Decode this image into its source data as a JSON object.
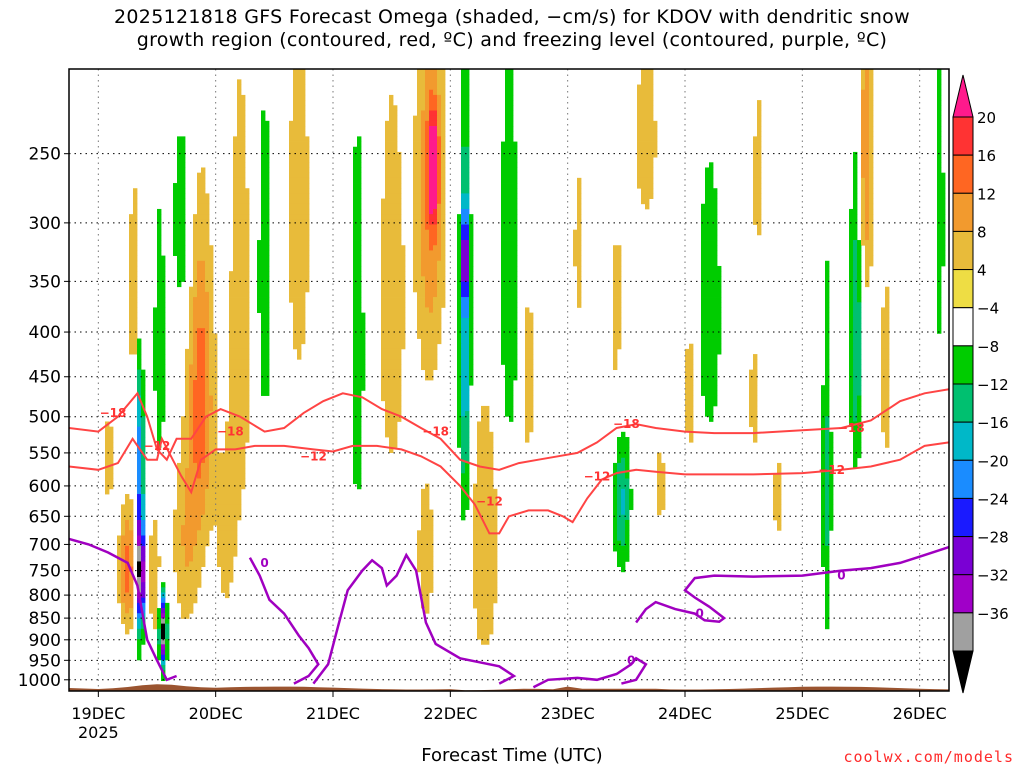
{
  "chart_data": {
    "type": "heatmap",
    "title_line1": "2025121818 GFS Forecast Omega (shaded, −cm/s) for KDOV with dendritic snow",
    "title_line2": "growth region (contoured, red, ºC) and freezing level (contoured, purple, ºC)",
    "xlabel": "Forecast Time (UTC)",
    "credit": "coolwx.com/models",
    "x_ticks": [
      "19DEC",
      "20DEC",
      "21DEC",
      "22DEC",
      "23DEC",
      "24DEC",
      "25DEC",
      "26DEC"
    ],
    "x_year": "2025",
    "x_tick_hours": [
      6,
      30,
      54,
      78,
      102,
      126,
      150,
      174
    ],
    "x_range_hours": [
      0,
      180
    ],
    "y_ticks": [
      250,
      300,
      350,
      400,
      450,
      500,
      550,
      600,
      650,
      700,
      750,
      800,
      850,
      900,
      950,
      1000
    ],
    "y_range_hPa": [
      200,
      1030
    ],
    "y_scale": "log-pressure",
    "grid": "dotted",
    "colorbar": {
      "labels": [
        "20",
        "16",
        "12",
        "8",
        "4",
        "−4",
        "−8",
        "−12",
        "−16",
        "−20",
        "−24",
        "−28",
        "−32",
        "−36"
      ],
      "colors": [
        "#ff1a8c",
        "#ff3333",
        "#ff6622",
        "#f29a2e",
        "#e8bb3a",
        "#eedd44",
        "#ffffff",
        "#00cc00",
        "#00c070",
        "#00b8c8",
        "#1a8cff",
        "#1a1aff",
        "#7a00d4",
        "#a000c8",
        "#a0a0a0",
        "#000000"
      ]
    },
    "omega_blobs": [
      {
        "x": 14,
        "p": 360,
        "dx": 1.8,
        "dp": 110,
        "v": 10
      },
      {
        "x": 8,
        "p": 560,
        "dx": 1.5,
        "dp": 90,
        "v": 6
      },
      {
        "x": 12,
        "p": 750,
        "dx": 1.8,
        "dp": 120,
        "v": 14
      },
      {
        "x": 14.5,
        "p": 600,
        "dx": 0.8,
        "dp": 280,
        "v": -20
      },
      {
        "x": 14.7,
        "p": 760,
        "dx": 0.6,
        "dp": 90,
        "v": -38
      },
      {
        "x": 17.5,
        "p": 760,
        "dx": 1.2,
        "dp": 140,
        "v": 8
      },
      {
        "x": 19.2,
        "p": 880,
        "dx": 0.7,
        "dp": 80,
        "v": -38
      },
      {
        "x": 18.5,
        "p": 420,
        "dx": 1.2,
        "dp": 160,
        "v": -8
      },
      {
        "x": 27,
        "p": 470,
        "dx": 2.6,
        "dp": 190,
        "v": 14
      },
      {
        "x": 24,
        "p": 700,
        "dx": 3.0,
        "dp": 180,
        "v": 8
      },
      {
        "x": 23,
        "p": 300,
        "dx": 1.8,
        "dp": 80,
        "v": -8
      },
      {
        "x": 35,
        "p": 400,
        "dx": 2.5,
        "dp": 260,
        "v": 7
      },
      {
        "x": 32,
        "p": 700,
        "dx": 2.5,
        "dp": 200,
        "v": 5
      },
      {
        "x": 40,
        "p": 350,
        "dx": 1.6,
        "dp": 160,
        "v": -8
      },
      {
        "x": 47,
        "p": 300,
        "dx": 3.0,
        "dp": 200,
        "v": 6
      },
      {
        "x": 59,
        "p": 420,
        "dx": 1.5,
        "dp": 230,
        "v": -8
      },
      {
        "x": 66,
        "p": 380,
        "dx": 3.5,
        "dp": 260,
        "v": 6
      },
      {
        "x": 74,
        "p": 280,
        "dx": 3.0,
        "dp": 140,
        "v": 12
      },
      {
        "x": 74.5,
        "p": 260,
        "dx": 1.0,
        "dp": 35,
        "v": 22
      },
      {
        "x": 73,
        "p": 720,
        "dx": 3.0,
        "dp": 250,
        "v": 5
      },
      {
        "x": 81,
        "p": 420,
        "dx": 1.2,
        "dp": 230,
        "v": -16
      },
      {
        "x": 81,
        "p": 330,
        "dx": 0.6,
        "dp": 40,
        "v": -24
      },
      {
        "x": 85,
        "p": 700,
        "dx": 3.0,
        "dp": 260,
        "v": 8
      },
      {
        "x": 90,
        "p": 350,
        "dx": 2.0,
        "dp": 200,
        "v": -8
      },
      {
        "x": 94,
        "p": 450,
        "dx": 1.5,
        "dp": 220,
        "v": 5
      },
      {
        "x": 104,
        "p": 320,
        "dx": 1.5,
        "dp": 200,
        "v": 4.5
      },
      {
        "x": 113,
        "p": 620,
        "dx": 1.8,
        "dp": 120,
        "v": -14
      },
      {
        "x": 112,
        "p": 420,
        "dx": 2.0,
        "dp": 200,
        "v": 5
      },
      {
        "x": 118,
        "p": 240,
        "dx": 4.0,
        "dp": 100,
        "v": 5
      },
      {
        "x": 121,
        "p": 600,
        "dx": 2.0,
        "dp": 160,
        "v": 4.5
      },
      {
        "x": 127,
        "p": 470,
        "dx": 1.2,
        "dp": 80,
        "v": 8
      },
      {
        "x": 131,
        "p": 380,
        "dx": 2.5,
        "dp": 150,
        "v": -8
      },
      {
        "x": 141,
        "p": 260,
        "dx": 1.5,
        "dp": 90,
        "v": 5
      },
      {
        "x": 140,
        "p": 480,
        "dx": 1.3,
        "dp": 130,
        "v": 5
      },
      {
        "x": 145,
        "p": 620,
        "dx": 1.8,
        "dp": 120,
        "v": 5
      },
      {
        "x": 155,
        "p": 600,
        "dx": 1.0,
        "dp": 300,
        "v": -9
      },
      {
        "x": 163,
        "p": 250,
        "dx": 1.5,
        "dp": 110,
        "v": 12
      },
      {
        "x": 161,
        "p": 400,
        "dx": 1.3,
        "dp": 170,
        "v": -12
      },
      {
        "x": 167,
        "p": 450,
        "dx": 1.5,
        "dp": 220,
        "v": 5
      },
      {
        "x": 178,
        "p": 300,
        "dx": 1.0,
        "dp": 120,
        "v": -8
      }
    ],
    "dendritic_minus12": [
      [
        0,
        570
      ],
      [
        6,
        575
      ],
      [
        10,
        565
      ],
      [
        13,
        530
      ],
      [
        16,
        560
      ],
      [
        18,
        560
      ],
      [
        19,
        530
      ],
      [
        23,
        585
      ],
      [
        25,
        610
      ],
      [
        27,
        560
      ],
      [
        30,
        545
      ],
      [
        34,
        545
      ],
      [
        38,
        540
      ],
      [
        44,
        540
      ],
      [
        50,
        545
      ],
      [
        54,
        548
      ],
      [
        58,
        540
      ],
      [
        63,
        540
      ],
      [
        68,
        545
      ],
      [
        72,
        555
      ],
      [
        76,
        570
      ],
      [
        80,
        600
      ],
      [
        83,
        630
      ],
      [
        86,
        680
      ],
      [
        88,
        680
      ],
      [
        90,
        650
      ],
      [
        94,
        640
      ],
      [
        98,
        640
      ],
      [
        101,
        650
      ],
      [
        103,
        660
      ],
      [
        106,
        620
      ],
      [
        109,
        590
      ],
      [
        112,
        580
      ],
      [
        116,
        575
      ],
      [
        120,
        578
      ],
      [
        126,
        582
      ],
      [
        132,
        582
      ],
      [
        140,
        582
      ],
      [
        150,
        580
      ],
      [
        158,
        575
      ],
      [
        164,
        570
      ],
      [
        170,
        560
      ],
      [
        175,
        540
      ],
      [
        180,
        535
      ]
    ],
    "dendritic_minus18": [
      [
        0,
        515
      ],
      [
        6,
        520
      ],
      [
        10,
        500
      ],
      [
        14,
        470
      ],
      [
        16,
        500
      ],
      [
        18,
        545
      ],
      [
        20,
        560
      ],
      [
        22,
        530
      ],
      [
        25,
        530
      ],
      [
        28,
        500
      ],
      [
        31,
        490
      ],
      [
        35,
        500
      ],
      [
        40,
        520
      ],
      [
        44,
        515
      ],
      [
        48,
        495
      ],
      [
        52,
        480
      ],
      [
        56,
        470
      ],
      [
        60,
        475
      ],
      [
        64,
        490
      ],
      [
        68,
        500
      ],
      [
        72,
        515
      ],
      [
        76,
        530
      ],
      [
        80,
        560
      ],
      [
        84,
        570
      ],
      [
        88,
        575
      ],
      [
        92,
        565
      ],
      [
        96,
        560
      ],
      [
        100,
        555
      ],
      [
        104,
        550
      ],
      [
        108,
        535
      ],
      [
        112,
        515
      ],
      [
        116,
        510
      ],
      [
        120,
        515
      ],
      [
        126,
        520
      ],
      [
        132,
        522
      ],
      [
        140,
        522
      ],
      [
        150,
        518
      ],
      [
        158,
        515
      ],
      [
        164,
        505
      ],
      [
        170,
        480
      ],
      [
        175,
        470
      ],
      [
        180,
        465
      ]
    ],
    "freezing_level": [
      [
        0,
        690
      ],
      [
        4,
        700
      ],
      [
        8,
        715
      ],
      [
        12,
        735
      ],
      [
        14,
        780
      ],
      [
        16,
        900
      ],
      [
        18,
        950
      ],
      [
        20,
        1000
      ],
      [
        22,
        990
      ]
    ],
    "freezing_level_2": [
      [
        37,
        725
      ],
      [
        39,
        760
      ],
      [
        41,
        810
      ],
      [
        44,
        840
      ],
      [
        47,
        890
      ],
      [
        49,
        920
      ],
      [
        51,
        960
      ],
      [
        49,
        990
      ],
      [
        46,
        1010
      ]
    ],
    "freezing_level_3": [
      [
        50,
        1010
      ],
      [
        53,
        960
      ],
      [
        55,
        870
      ],
      [
        57,
        790
      ],
      [
        60,
        750
      ],
      [
        62,
        730
      ],
      [
        64,
        745
      ],
      [
        65,
        780
      ],
      [
        67,
        760
      ],
      [
        69,
        720
      ],
      [
        71,
        750
      ],
      [
        73,
        860
      ],
      [
        75,
        910
      ],
      [
        80,
        945
      ],
      [
        84,
        955
      ],
      [
        88,
        965
      ],
      [
        91,
        990
      ],
      [
        88,
        1010
      ]
    ],
    "freezing_level_4": [
      [
        95,
        1020
      ],
      [
        98,
        1000
      ],
      [
        104,
        995
      ],
      [
        108,
        1000
      ],
      [
        112,
        985
      ],
      [
        115,
        960
      ],
      [
        116,
        945
      ],
      [
        118,
        960
      ],
      [
        116,
        1000
      ],
      [
        113,
        1010
      ]
    ],
    "freezing_level_5": [
      [
        116,
        860
      ],
      [
        118,
        830
      ],
      [
        120,
        815
      ],
      [
        124,
        830
      ],
      [
        128,
        840
      ],
      [
        130,
        855
      ],
      [
        133,
        858
      ],
      [
        134,
        850
      ],
      [
        131,
        825
      ],
      [
        128,
        805
      ],
      [
        126,
        790
      ],
      [
        128,
        765
      ],
      [
        132,
        760
      ],
      [
        140,
        762
      ],
      [
        150,
        760
      ],
      [
        158,
        750
      ],
      [
        164,
        745
      ],
      [
        170,
        735
      ],
      [
        175,
        720
      ],
      [
        180,
        705
      ]
    ],
    "contour_label_minus12": "−12",
    "contour_label_minus18": "−18",
    "contour_label_zero": "0"
  }
}
